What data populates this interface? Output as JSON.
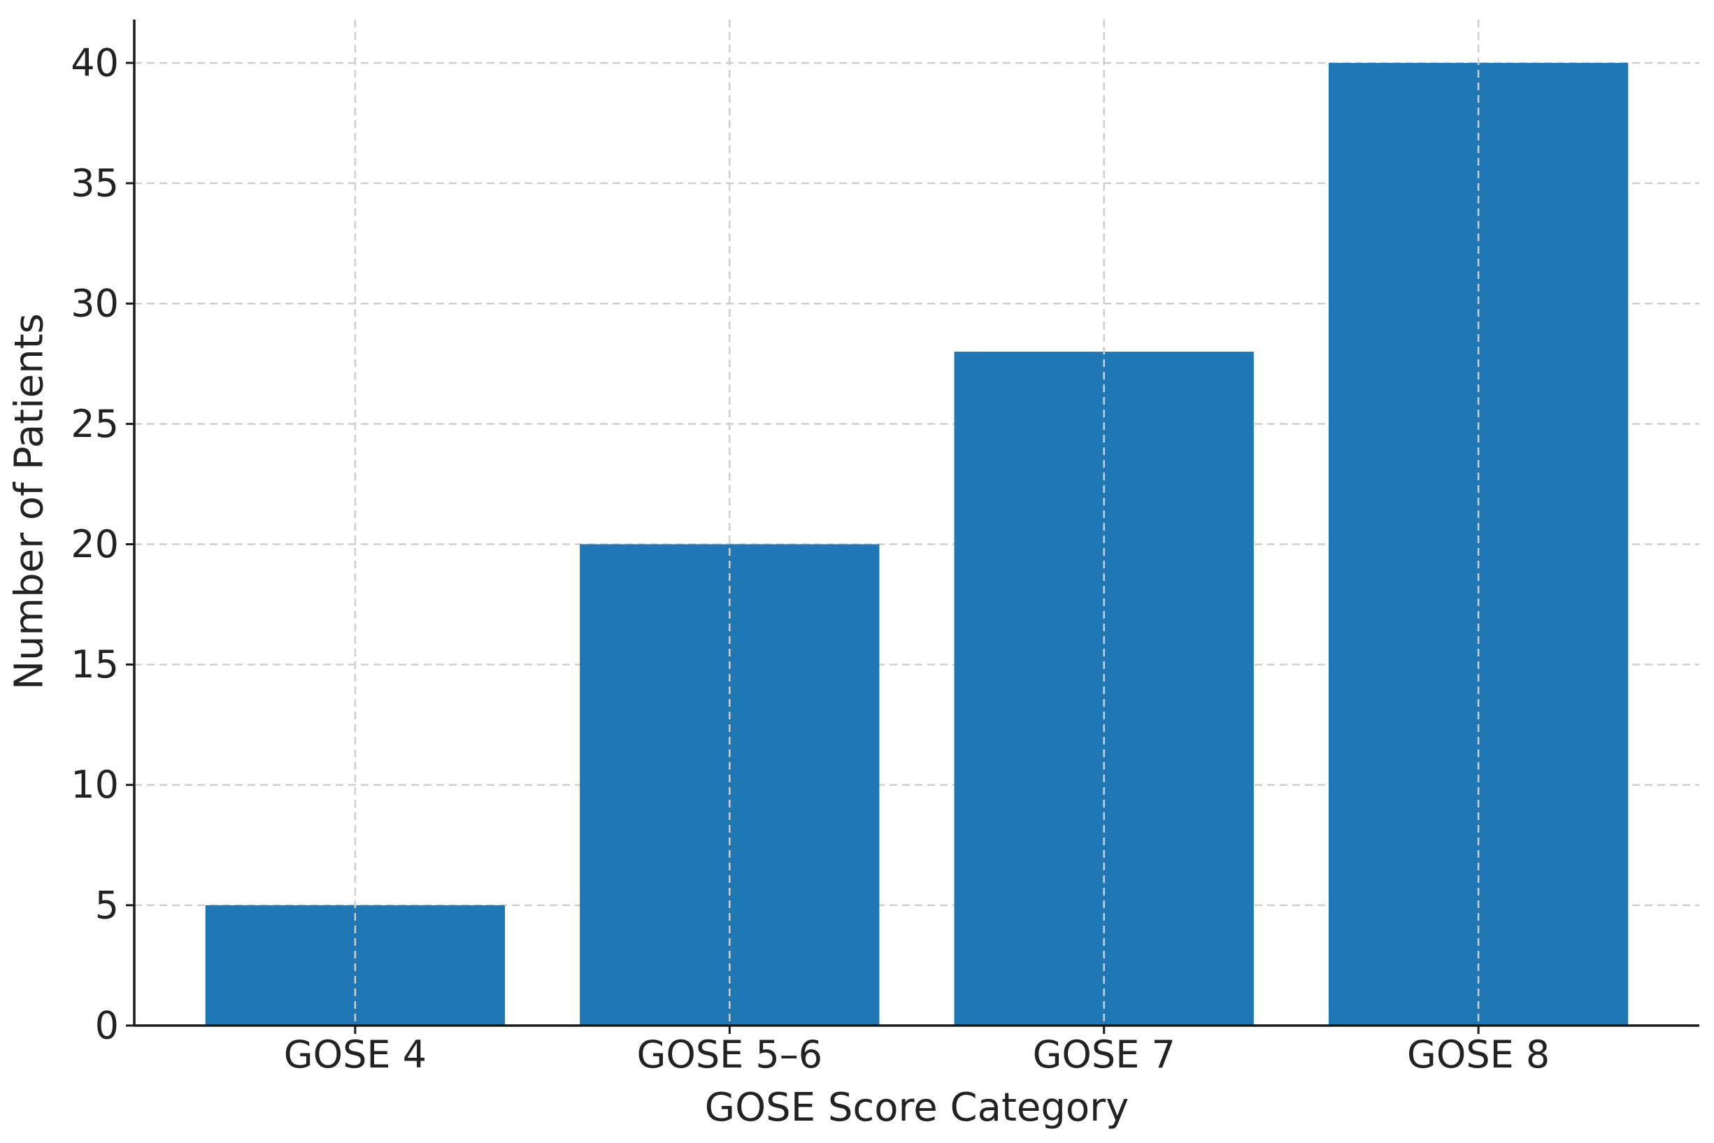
{
  "chart_data": {
    "type": "bar",
    "title": "",
    "xlabel": "GOSE Score Category",
    "ylabel": "Number of Patients",
    "categories": [
      "GOSE 4",
      "GOSE 5–6",
      "GOSE 7",
      "GOSE 8"
    ],
    "values": [
      5,
      20,
      28,
      40
    ],
    "ylim": [
      0,
      41.8
    ],
    "yticks": [
      0,
      5,
      10,
      15,
      20,
      25,
      30,
      35,
      40
    ],
    "grid": true,
    "legend": "none",
    "bar_color": "#1f77b4"
  }
}
